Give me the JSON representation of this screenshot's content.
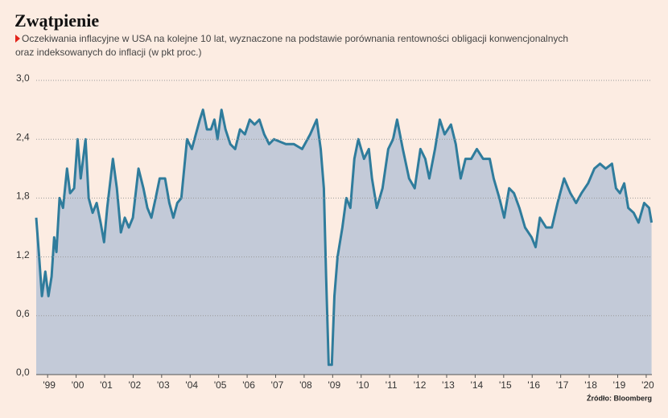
{
  "chart_data": {
    "type": "area",
    "title": "Zwątpienie",
    "subtitle": [
      "Oczekiwania inflacyjne w USA na kolejne 10 lat, wyznaczone na podstawie porównania rentowności obligacji konwencjonalnych",
      "oraz indeksowanych do inflacji (w pkt proc.)"
    ],
    "source": "Źródło: Bloomberg",
    "color": "#2f7c9c",
    "fill": "#c3cad8",
    "grid": true,
    "x": [
      1998.6,
      1998.69,
      1998.8,
      1998.92,
      1999.03,
      1999.14,
      1999.23,
      1999.31,
      1999.42,
      1999.54,
      1999.68,
      1999.79,
      1999.93,
      2000.05,
      2000.16,
      2000.33,
      2000.44,
      2000.58,
      2000.72,
      2000.86,
      2000.98,
      2001.09,
      2001.29,
      2001.43,
      2001.57,
      2001.71,
      2001.85,
      2001.99,
      2002.19,
      2002.36,
      2002.5,
      2002.64,
      2002.79,
      2002.93,
      2003.12,
      2003.27,
      2003.41,
      2003.55,
      2003.69,
      2003.89,
      2004.06,
      2004.2,
      2004.34,
      2004.45,
      2004.59,
      2004.73,
      2004.85,
      2004.96,
      2005.1,
      2005.24,
      2005.41,
      2005.58,
      2005.75,
      2005.92,
      2006.09,
      2006.26,
      2006.43,
      2006.6,
      2006.77,
      2006.94,
      2007.36,
      2007.64,
      2007.93,
      2008.21,
      2008.44,
      2008.58,
      2008.69,
      2008.77,
      2008.86,
      2008.97,
      2009.06,
      2009.17,
      2009.34,
      2009.48,
      2009.62,
      2009.76,
      2009.9,
      2010.1,
      2010.27,
      2010.38,
      2010.55,
      2010.75,
      2010.95,
      2011.12,
      2011.26,
      2011.46,
      2011.68,
      2011.88,
      2012.08,
      2012.25,
      2012.39,
      2012.59,
      2012.76,
      2012.93,
      2013.15,
      2013.32,
      2013.49,
      2013.66,
      2013.86,
      2014.06,
      2014.28,
      2014.51,
      2014.65,
      2014.85,
      2015.02,
      2015.19,
      2015.36,
      2015.55,
      2015.75,
      2015.98,
      2016.12,
      2016.27,
      2016.49,
      2016.69,
      2016.89,
      2017.12,
      2017.34,
      2017.54,
      2017.73,
      2017.96,
      2018.18,
      2018.38,
      2018.58,
      2018.8,
      2018.94,
      2019.08,
      2019.23,
      2019.37,
      2019.56,
      2019.73,
      2019.93,
      2020.1,
      2020.19
    ],
    "values": [
      1.6,
      1.25,
      0.8,
      1.05,
      0.8,
      1.0,
      1.4,
      1.25,
      1.8,
      1.7,
      2.1,
      1.85,
      1.9,
      2.4,
      2.0,
      2.4,
      1.8,
      1.65,
      1.75,
      1.55,
      1.35,
      1.7,
      2.2,
      1.9,
      1.45,
      1.6,
      1.5,
      1.6,
      2.1,
      1.9,
      1.7,
      1.6,
      1.8,
      2.0,
      2.0,
      1.75,
      1.6,
      1.75,
      1.8,
      2.4,
      2.3,
      2.45,
      2.6,
      2.7,
      2.5,
      2.5,
      2.6,
      2.4,
      2.7,
      2.5,
      2.35,
      2.3,
      2.5,
      2.45,
      2.6,
      2.55,
      2.6,
      2.45,
      2.35,
      2.4,
      2.35,
      2.35,
      2.3,
      2.45,
      2.6,
      2.3,
      1.9,
      1.0,
      0.1,
      0.1,
      0.8,
      1.2,
      1.5,
      1.8,
      1.7,
      2.2,
      2.4,
      2.2,
      2.3,
      2.0,
      1.7,
      1.9,
      2.3,
      2.4,
      2.6,
      2.3,
      2.0,
      1.9,
      2.3,
      2.2,
      2.0,
      2.3,
      2.6,
      2.45,
      2.55,
      2.35,
      2.0,
      2.2,
      2.2,
      2.3,
      2.2,
      2.2,
      2.0,
      1.8,
      1.6,
      1.9,
      1.85,
      1.7,
      1.5,
      1.4,
      1.3,
      1.6,
      1.5,
      1.5,
      1.75,
      2.0,
      1.85,
      1.75,
      1.85,
      1.95,
      2.1,
      2.15,
      2.1,
      2.15,
      1.9,
      1.85,
      1.95,
      1.7,
      1.65,
      1.55,
      1.75,
      1.7,
      1.55
    ],
    "xlim": [
      1998.6,
      2020.2
    ],
    "xticks": [
      {
        "value": 1999,
        "label": "'99"
      },
      {
        "value": 2000,
        "label": "'00"
      },
      {
        "value": 2001,
        "label": "'01"
      },
      {
        "value": 2002,
        "label": "'02"
      },
      {
        "value": 2003,
        "label": "'03"
      },
      {
        "value": 2004,
        "label": "'04"
      },
      {
        "value": 2005,
        "label": "'05"
      },
      {
        "value": 2006,
        "label": "'06"
      },
      {
        "value": 2007,
        "label": "'07"
      },
      {
        "value": 2008,
        "label": "'08"
      },
      {
        "value": 2009,
        "label": "'09"
      },
      {
        "value": 2010,
        "label": "'10"
      },
      {
        "value": 2011,
        "label": "'11"
      },
      {
        "value": 2012,
        "label": "'12"
      },
      {
        "value": 2013,
        "label": "'13"
      },
      {
        "value": 2014,
        "label": "'14"
      },
      {
        "value": 2015,
        "label": "'15"
      },
      {
        "value": 2016,
        "label": "'16"
      },
      {
        "value": 2017,
        "label": "'17"
      },
      {
        "value": 2018,
        "label": "'18"
      },
      {
        "value": 2019,
        "label": "'19"
      },
      {
        "value": 2020,
        "label": "'20"
      }
    ],
    "ylim": [
      0,
      3
    ],
    "yticks": [
      {
        "value": 0,
        "label": "0,0"
      },
      {
        "value": 0.6,
        "label": "0,6"
      },
      {
        "value": 1.2,
        "label": "1,2"
      },
      {
        "value": 1.8,
        "label": "1,8"
      },
      {
        "value": 2.4,
        "label": "2,4"
      },
      {
        "value": 3,
        "label": "3,0"
      }
    ]
  }
}
